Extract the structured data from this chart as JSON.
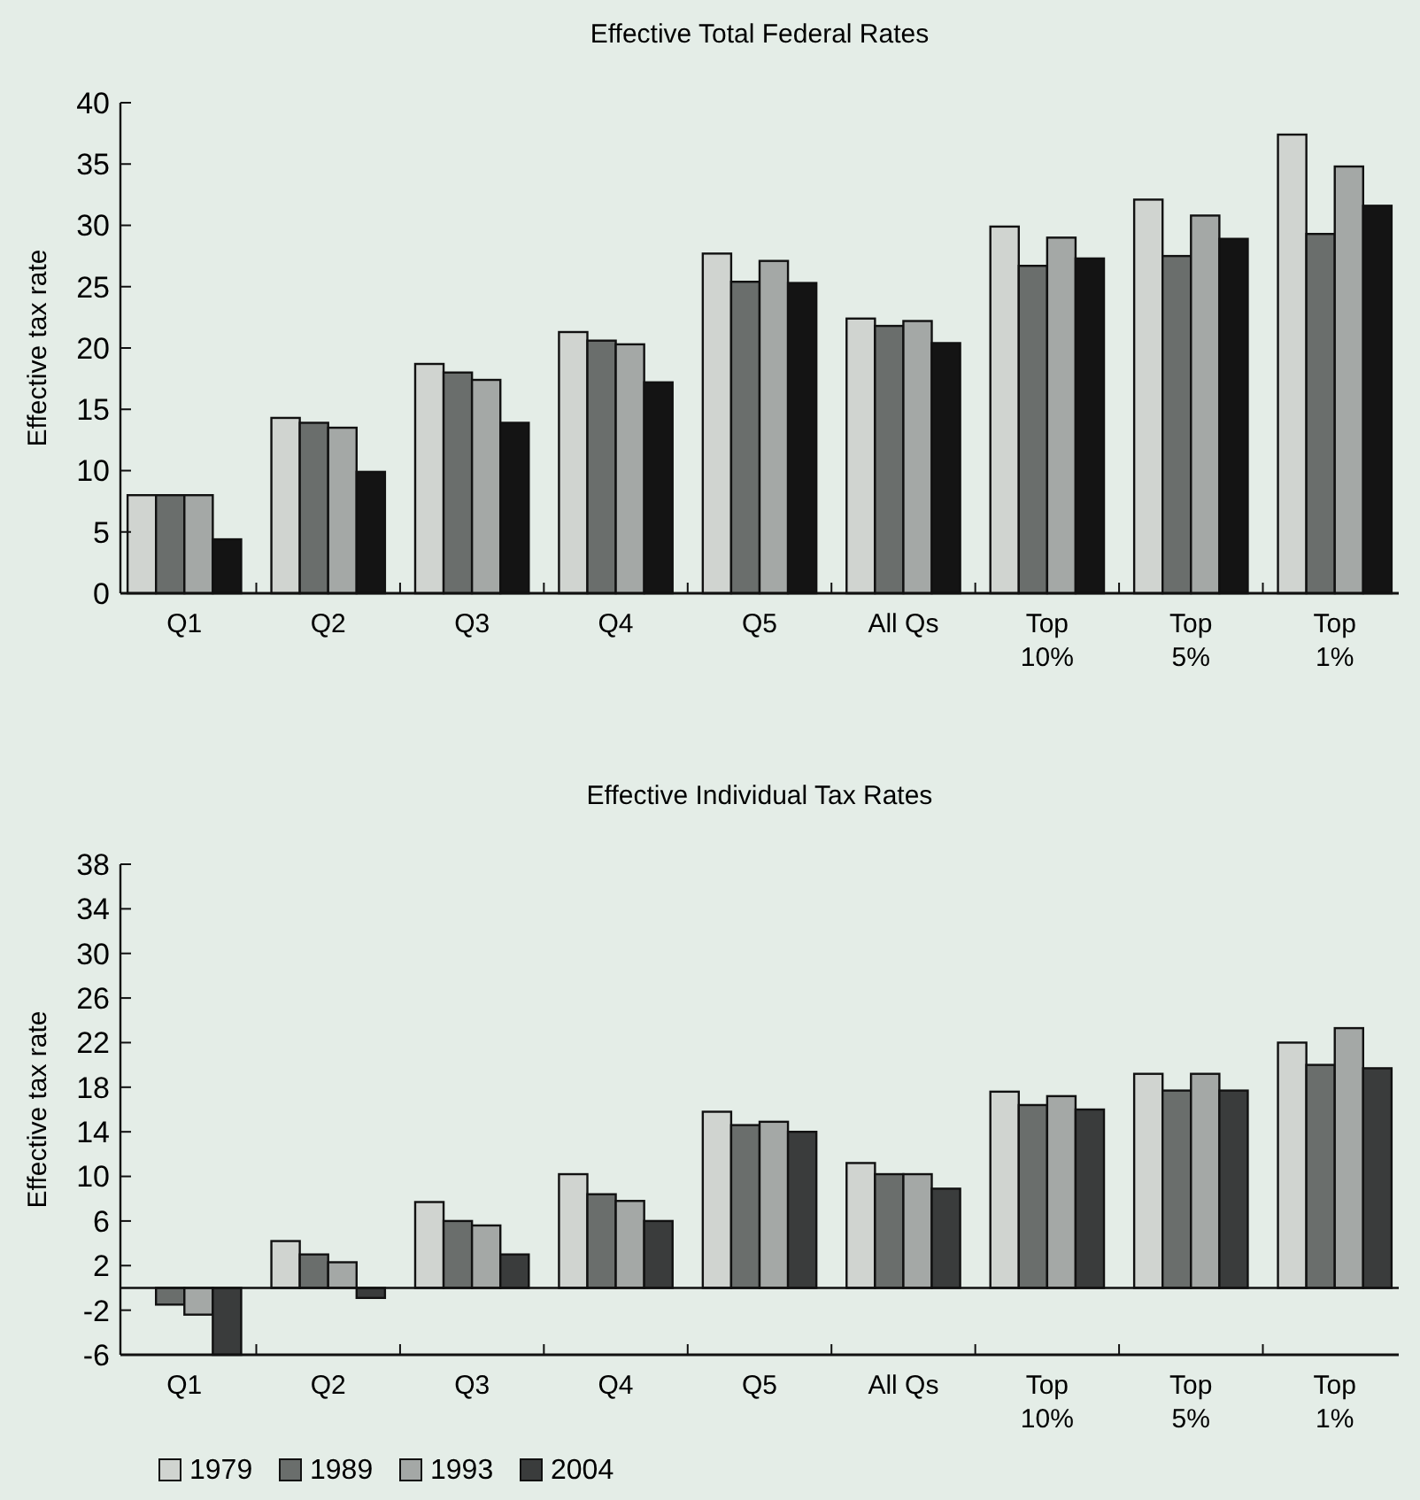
{
  "chart_data": [
    {
      "type": "bar",
      "title": "Effective Total Federal Rates",
      "ylabel": "Effective tax rate",
      "categories": [
        "Q1",
        "Q2",
        "Q3",
        "Q4",
        "Q5",
        "All Qs",
        "Top\n10%",
        "Top\n5%",
        "Top\n1%"
      ],
      "series": [
        {
          "color": "#d0d4d0",
          "values": [
            8.0,
            14.3,
            18.7,
            21.3,
            27.7,
            22.4,
            29.9,
            32.1,
            37.4
          ]
        },
        {
          "color": "#6a6e6c",
          "values": [
            8.0,
            13.9,
            18.0,
            20.6,
            25.4,
            21.8,
            26.7,
            27.5,
            29.3
          ]
        },
        {
          "color": "#a4a8a6",
          "values": [
            8.0,
            13.5,
            17.4,
            20.3,
            27.1,
            22.2,
            29.0,
            30.8,
            34.8
          ]
        },
        {
          "color": "#141414",
          "values": [
            4.4,
            9.9,
            13.9,
            17.2,
            25.3,
            20.4,
            27.3,
            28.9,
            31.6
          ]
        }
      ],
      "ylim": [
        0,
        40
      ],
      "yticks": [
        0,
        5,
        10,
        15,
        20,
        25,
        30,
        35,
        40
      ],
      "grid": false,
      "legend": false
    },
    {
      "type": "bar",
      "title": "Effective Individual Tax Rates",
      "ylabel": "Effective tax rate",
      "categories": [
        "Q1",
        "Q2",
        "Q3",
        "Q4",
        "Q5",
        "All Qs",
        "Top\n10%",
        "Top\n5%",
        "Top\n1%"
      ],
      "series": [
        {
          "name": "1979",
          "color": "#d0d4d0",
          "values": [
            0,
            4.2,
            7.7,
            10.2,
            15.8,
            11.2,
            17.6,
            19.2,
            22.0
          ]
        },
        {
          "name": "1989",
          "color": "#6a6e6c",
          "values": [
            -1.5,
            3.0,
            6.0,
            8.4,
            14.6,
            10.2,
            16.4,
            17.7,
            20.0
          ]
        },
        {
          "name": "1993",
          "color": "#a4a8a6",
          "values": [
            -2.4,
            2.3,
            5.6,
            7.8,
            14.9,
            10.2,
            17.2,
            19.2,
            23.3
          ]
        },
        {
          "name": "2004",
          "color": "#3a3c3c",
          "values": [
            -6,
            -0.9,
            3.0,
            6.0,
            14.0,
            8.9,
            16.0,
            17.7,
            19.7
          ]
        }
      ],
      "ylim": [
        -6,
        38
      ],
      "yticks": [
        -6,
        -2,
        2,
        6,
        10,
        14,
        18,
        22,
        26,
        30,
        34,
        38
      ],
      "grid": false,
      "legend": "bottom left"
    }
  ]
}
